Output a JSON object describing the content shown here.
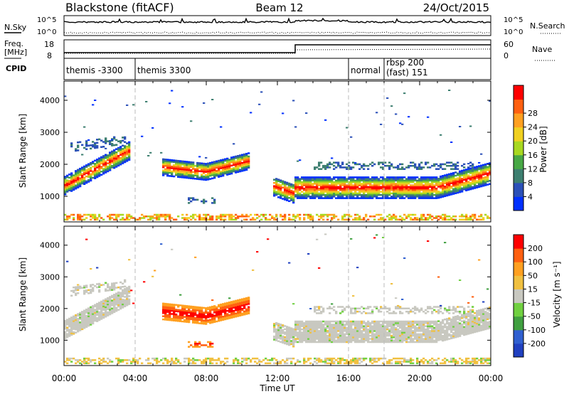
{
  "header": {
    "station": "Blackstone (fitACF)",
    "beam": "Beam 12",
    "date": "24/Oct/2015"
  },
  "summary_panels": {
    "nsky_label": "N.Sky",
    "nsky_ticks": [
      "10^5",
      "10^0"
    ],
    "nsearch_label": "N.Search",
    "nsearch_ticks": [
      "10^5",
      "10^0"
    ],
    "freq_label_lines": [
      "Freq.",
      "[MHz]"
    ],
    "freq_ticks": [
      "18",
      "8"
    ],
    "nave_label": "Nave",
    "nave_ticks": [
      "60",
      "0"
    ],
    "cpid_label": "CPID"
  },
  "cpid_segments": [
    {
      "label": "themis -3300",
      "start_h": 0.0,
      "end_h": 4.0
    },
    {
      "label": "themis 3300",
      "start_h": 4.0,
      "end_h": 16.0
    },
    {
      "label": "normal",
      "start_h": 16.0,
      "end_h": 18.0
    },
    {
      "label": "rbsp 200",
      "label2": "(fast) 151",
      "start_h": 18.0,
      "end_h": 24.0
    }
  ],
  "chart_data": [
    {
      "type": "heatmap",
      "name": "power",
      "ylabel": "Slant Range [km]",
      "yticks": [
        1000,
        2000,
        3000,
        4000
      ],
      "ylim": [
        200,
        4600
      ],
      "xlim": [
        0,
        24
      ],
      "colorbar_label": "Power [dB]",
      "colorbar_ticks": [
        "4",
        "8",
        "12",
        "16",
        "20",
        "24",
        "28"
      ],
      "colorbar_colors": [
        "#0030ff",
        "#2b50b8",
        "#3d7f70",
        "#47a845",
        "#a8d820",
        "#f0d020",
        "#ffa020",
        "#ff6010",
        "#ff0000"
      ]
    },
    {
      "type": "heatmap",
      "name": "velocity",
      "ylabel": "Slant Range [km]",
      "yticks": [
        1000,
        2000,
        3000,
        4000
      ],
      "ylim": [
        200,
        4600
      ],
      "xlim": [
        0,
        24
      ],
      "colorbar_label": "Velocity [m s⁻¹]",
      "colorbar_ticks": [
        "200",
        "100",
        "50",
        "15",
        "-15",
        "-50",
        "-100",
        "-200"
      ],
      "colorbar_colors": [
        "#2040c0",
        "#3060d0",
        "#40a040",
        "#70d040",
        "#c8c8c0",
        "#f0c040",
        "#ffa020",
        "#ff6010",
        "#ff0000"
      ]
    }
  ],
  "time_axis": {
    "ticks": [
      "00:00",
      "04:00",
      "08:00",
      "12:00",
      "16:00",
      "20:00",
      "00:00"
    ],
    "label": "Time UT"
  }
}
